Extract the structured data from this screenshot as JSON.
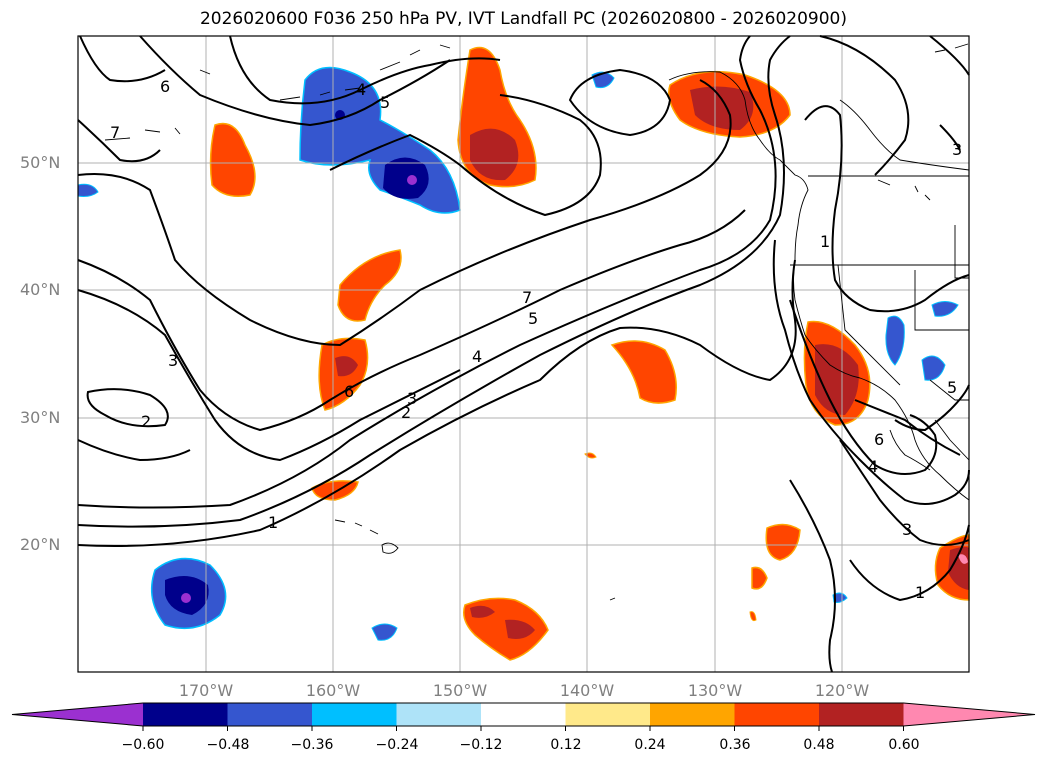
{
  "title": "2026020600 F036 250 hPa PV, IVT Landfall PC (2026020800 - 2026020900)",
  "lat_labels": [
    "50°N",
    "40°N",
    "30°N",
    "20°N"
  ],
  "lon_labels": [
    "170°W",
    "160°W",
    "150°W",
    "140°W",
    "130°W",
    "120°W"
  ],
  "colorbar": {
    "ticks": [
      "−0.60",
      "−0.48",
      "−0.36",
      "−0.24",
      "−0.12",
      "0.12",
      "0.24",
      "0.36",
      "0.48",
      "0.60"
    ],
    "colors": [
      "#9b30d0",
      "#00008b",
      "#3556cf",
      "#00bfff",
      "#aee3f8",
      "#ffffff",
      "#ffe98a",
      "#ffa500",
      "#ff4500",
      "#b22222",
      "#ff88b0"
    ]
  },
  "contour_labels": [
    "7",
    "6",
    "4",
    "5",
    "3",
    "2",
    "7",
    "5",
    "4",
    "3",
    "2",
    "1",
    "6",
    "1",
    "4",
    "6",
    "5",
    "3",
    "1",
    "3"
  ],
  "colors": {
    "grid": "#b0b0b0",
    "contour": "#000000",
    "coast": "#000000"
  }
}
